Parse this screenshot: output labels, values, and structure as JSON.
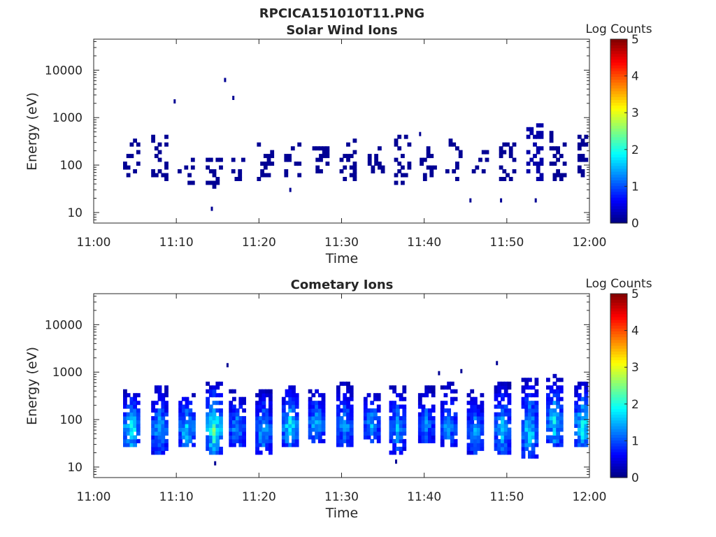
{
  "figure": {
    "title": "RPCICA151010T11.PNG"
  },
  "chart_data": [
    {
      "type": "heatmap",
      "title": "Solar Wind Ions",
      "xlabel": "Time",
      "ylabel": "Energy (eV)",
      "x_range": [
        "11:00",
        "12:00"
      ],
      "x_ticks": [
        "11:00",
        "11:10",
        "11:20",
        "11:30",
        "11:40",
        "11:50",
        "12:00"
      ],
      "y_scale": "log",
      "y_range": [
        6,
        45000
      ],
      "y_ticks": [
        "10",
        "100",
        "1000",
        "10000"
      ],
      "colorbar": {
        "label": "Log Counts",
        "range": [
          0,
          5
        ],
        "ticks": [
          "0",
          "1",
          "2",
          "3",
          "4",
          "5"
        ],
        "colormap": "jet"
      },
      "grid": false,
      "bursts": [
        {
          "t": 4.6,
          "log_counts": 0.1,
          "e_min": 45,
          "e_max": 330
        },
        {
          "t": 8.0,
          "log_counts": 0.1,
          "e_min": 45,
          "e_max": 400
        },
        {
          "t": 11.2,
          "log_counts": 0.1,
          "e_min": 30,
          "e_max": 150
        },
        {
          "t": 14.6,
          "log_counts": 0.1,
          "e_min": 35,
          "e_max": 240
        },
        {
          "t": 17.7,
          "log_counts": 0.1,
          "e_min": 50,
          "e_max": 150
        },
        {
          "t": 20.8,
          "log_counts": 0.1,
          "e_min": 45,
          "e_max": 300
        },
        {
          "t": 24.1,
          "log_counts": 0.1,
          "e_min": 60,
          "e_max": 300
        },
        {
          "t": 27.5,
          "log_counts": 0.1,
          "e_min": 70,
          "e_max": 250
        },
        {
          "t": 30.8,
          "log_counts": 0.1,
          "e_min": 45,
          "e_max": 400
        },
        {
          "t": 34.2,
          "log_counts": 0.1,
          "e_min": 45,
          "e_max": 250
        },
        {
          "t": 37.4,
          "log_counts": 0.1,
          "e_min": 40,
          "e_max": 400
        },
        {
          "t": 40.5,
          "log_counts": 0.1,
          "e_min": 50,
          "e_max": 250
        },
        {
          "t": 43.6,
          "log_counts": 0.1,
          "e_min": 45,
          "e_max": 330
        },
        {
          "t": 46.8,
          "log_counts": 0.1,
          "e_min": 70,
          "e_max": 220
        },
        {
          "t": 50.1,
          "log_counts": 0.1,
          "e_min": 50,
          "e_max": 300
        },
        {
          "t": 53.4,
          "log_counts": 0.2,
          "e_min": 45,
          "e_max": 800
        },
        {
          "t": 56.2,
          "log_counts": 0.1,
          "e_min": 50,
          "e_max": 500
        },
        {
          "t": 59.6,
          "log_counts": 0.1,
          "e_min": 60,
          "e_max": 450
        }
      ],
      "isolated_points": [
        {
          "t": 9.8,
          "e": 2200
        },
        {
          "t": 15.9,
          "e": 6200
        },
        {
          "t": 16.9,
          "e": 2600
        },
        {
          "t": 14.3,
          "e": 12
        },
        {
          "t": 23.8,
          "e": 30
        },
        {
          "t": 45.6,
          "e": 18
        },
        {
          "t": 49.3,
          "e": 18
        },
        {
          "t": 53.5,
          "e": 18
        },
        {
          "t": 39.5,
          "e": 450
        }
      ]
    },
    {
      "type": "heatmap",
      "title": "Cometary Ions",
      "xlabel": "Time",
      "ylabel": "Energy (eV)",
      "x_range": [
        "11:00",
        "12:00"
      ],
      "x_ticks": [
        "11:00",
        "11:10",
        "11:20",
        "11:30",
        "11:40",
        "11:50",
        "12:00"
      ],
      "y_scale": "log",
      "y_range": [
        6,
        45000
      ],
      "y_ticks": [
        "10",
        "100",
        "1000",
        "10000"
      ],
      "colorbar": {
        "label": "Log Counts",
        "range": [
          0,
          5
        ],
        "ticks": [
          "0",
          "1",
          "2",
          "3",
          "4",
          "5"
        ],
        "colormap": "jet"
      },
      "grid": false,
      "bursts": [
        {
          "t": 4.6,
          "log_counts": 1.8,
          "e_min": 25,
          "e_max": 400
        },
        {
          "t": 8.0,
          "log_counts": 1.4,
          "e_min": 20,
          "e_max": 550
        },
        {
          "t": 11.3,
          "log_counts": 1.6,
          "e_min": 25,
          "e_max": 380
        },
        {
          "t": 14.6,
          "log_counts": 2.0,
          "e_min": 18,
          "e_max": 600
        },
        {
          "t": 17.4,
          "log_counts": 1.3,
          "e_min": 25,
          "e_max": 420
        },
        {
          "t": 20.6,
          "log_counts": 1.4,
          "e_min": 18,
          "e_max": 450
        },
        {
          "t": 23.8,
          "log_counts": 1.7,
          "e_min": 25,
          "e_max": 550
        },
        {
          "t": 27.0,
          "log_counts": 1.5,
          "e_min": 30,
          "e_max": 450
        },
        {
          "t": 30.4,
          "log_counts": 1.3,
          "e_min": 25,
          "e_max": 580
        },
        {
          "t": 33.7,
          "log_counts": 1.4,
          "e_min": 35,
          "e_max": 380
        },
        {
          "t": 36.8,
          "log_counts": 1.3,
          "e_min": 20,
          "e_max": 550
        },
        {
          "t": 40.3,
          "log_counts": 1.2,
          "e_min": 30,
          "e_max": 500
        },
        {
          "t": 43.0,
          "log_counts": 1.3,
          "e_min": 25,
          "e_max": 580
        },
        {
          "t": 46.2,
          "log_counts": 1.3,
          "e_min": 20,
          "e_max": 450
        },
        {
          "t": 49.5,
          "log_counts": 1.5,
          "e_min": 18,
          "e_max": 620
        },
        {
          "t": 52.8,
          "log_counts": 1.6,
          "e_min": 15,
          "e_max": 780
        },
        {
          "t": 55.8,
          "log_counts": 1.6,
          "e_min": 25,
          "e_max": 850
        },
        {
          "t": 59.2,
          "log_counts": 1.7,
          "e_min": 25,
          "e_max": 600
        }
      ],
      "isolated_points": [
        {
          "t": 16.2,
          "e": 1400
        },
        {
          "t": 14.7,
          "e": 12
        },
        {
          "t": 36.6,
          "e": 13
        },
        {
          "t": 41.8,
          "e": 950
        },
        {
          "t": 44.5,
          "e": 1050
        },
        {
          "t": 48.8,
          "e": 1550
        }
      ]
    }
  ]
}
